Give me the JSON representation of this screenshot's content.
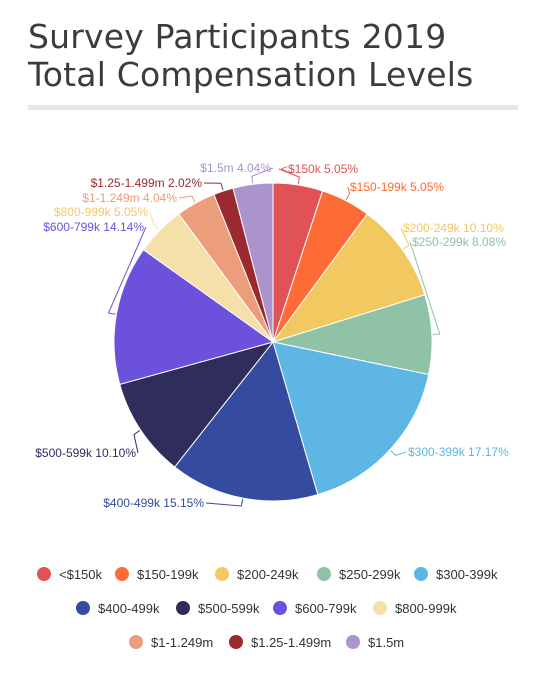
{
  "title_lines": [
    "Survey Participants 2019",
    "Total Compensation Levels"
  ],
  "chart_data": {
    "type": "pie",
    "title": "Survey Participants 2019 Total Compensation Levels",
    "legend_position": "bottom",
    "slices": [
      {
        "label": "<$150k",
        "value": 5.05,
        "display": "5.05%",
        "color": "#e05255"
      },
      {
        "label": "$150-199k",
        "value": 5.05,
        "display": "5.05%",
        "color": "#ff6b35"
      },
      {
        "label": "$200-249k",
        "value": 10.1,
        "display": "10.10%",
        "color": "#f2c961"
      },
      {
        "label": "$250-299k",
        "value": 8.08,
        "display": "8.08%",
        "color": "#8fc2a7"
      },
      {
        "label": "$300-399k",
        "value": 17.17,
        "display": "17.17%",
        "color": "#5eb6e4"
      },
      {
        "label": "$400-499k",
        "value": 15.15,
        "display": "15.15%",
        "color": "#344b9f"
      },
      {
        "label": "$500-599k",
        "value": 10.1,
        "display": "10.10%",
        "color": "#2e2d5c"
      },
      {
        "label": "$600-799k",
        "value": 14.14,
        "display": "14.14%",
        "color": "#6c51dc"
      },
      {
        "label": "$800-999k",
        "value": 5.05,
        "display": "5.05%",
        "color": "#f5e0a9"
      },
      {
        "label": "$1-1.249m",
        "value": 4.04,
        "display": "4.04%",
        "color": "#eb9d7c"
      },
      {
        "label": "$1.25-1.499m",
        "value": 2.02,
        "display": "2.02%",
        "color": "#9a2a2f"
      },
      {
        "label": "$1.5m",
        "value": 4.04,
        "display": "4.04%",
        "color": "#ab93cc"
      }
    ]
  }
}
